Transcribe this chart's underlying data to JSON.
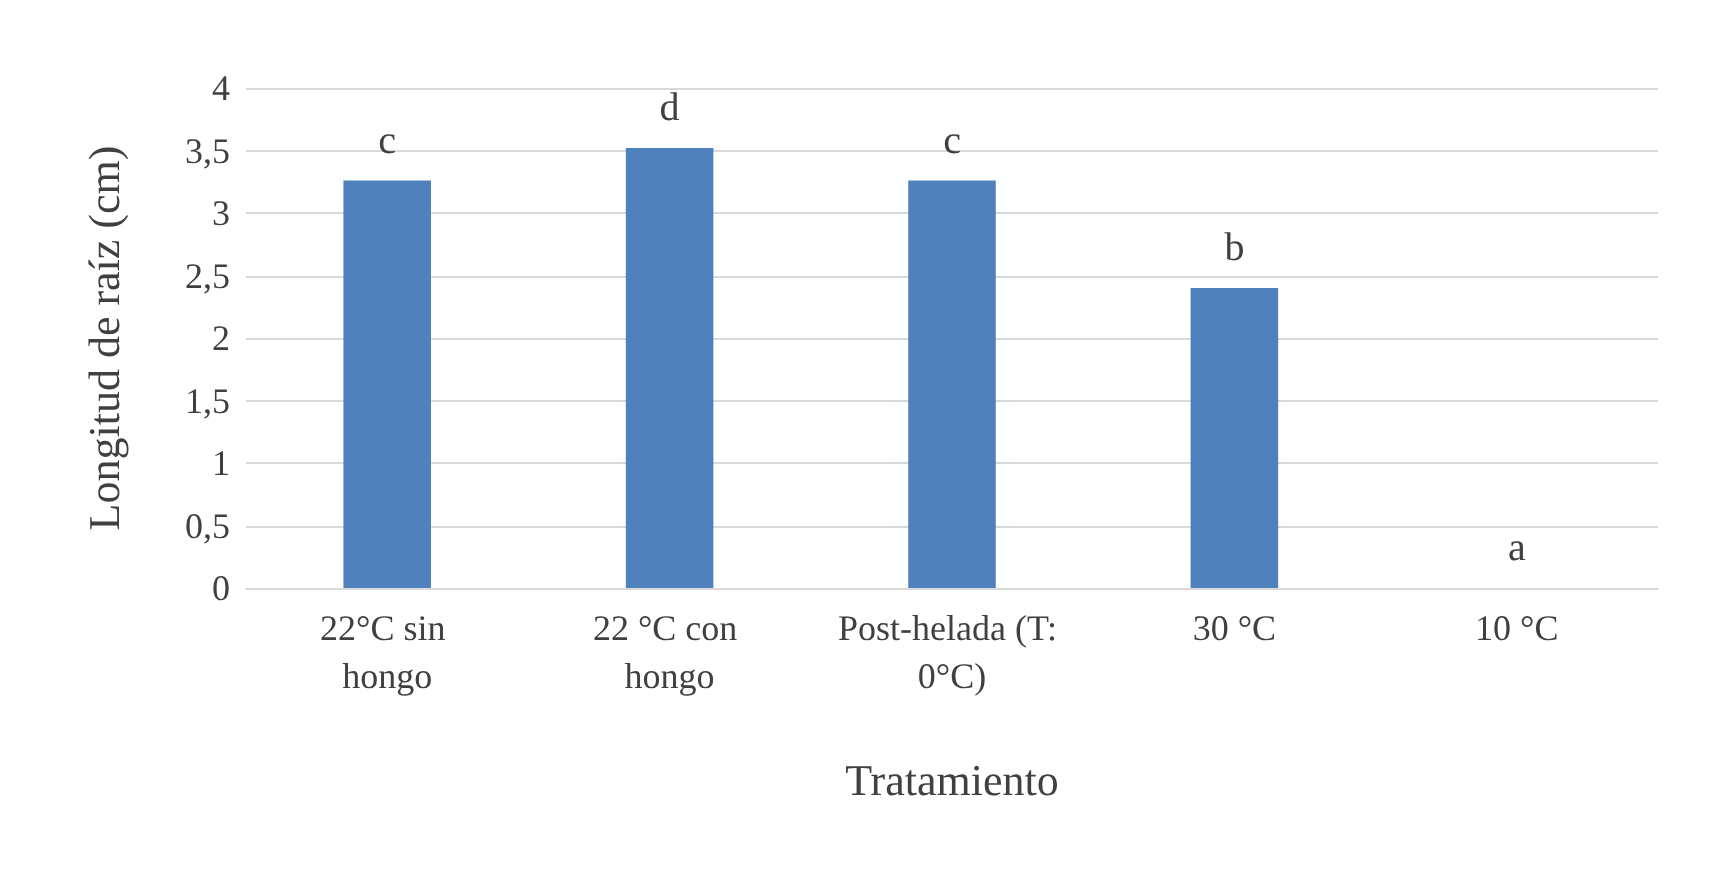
{
  "chart_data": {
    "type": "bar",
    "xlabel": "Tratamiento",
    "ylabel": "Longitud de raíz (cm)",
    "categories": [
      "22°C sin hongo",
      "22 °C con hongo",
      "Post-helada (T: 0°C)",
      "30 °C",
      "10 °C"
    ],
    "values": [
      3.26,
      3.52,
      3.26,
      2.4,
      0
    ],
    "value_labels": [
      "c",
      "d",
      "c",
      "b",
      "a"
    ],
    "color": "#4f81bd",
    "ylim": [
      0,
      4
    ],
    "yticks": [
      0,
      {
        "value": 0.5,
        "label": "0,5"
      },
      1,
      {
        "value": 1.5,
        "label": "1,5"
      },
      2,
      {
        "value": 2.5,
        "label": "2,5"
      },
      3,
      {
        "value": 3.5,
        "label": "3,5"
      },
      4
    ],
    "grid": "y"
  }
}
